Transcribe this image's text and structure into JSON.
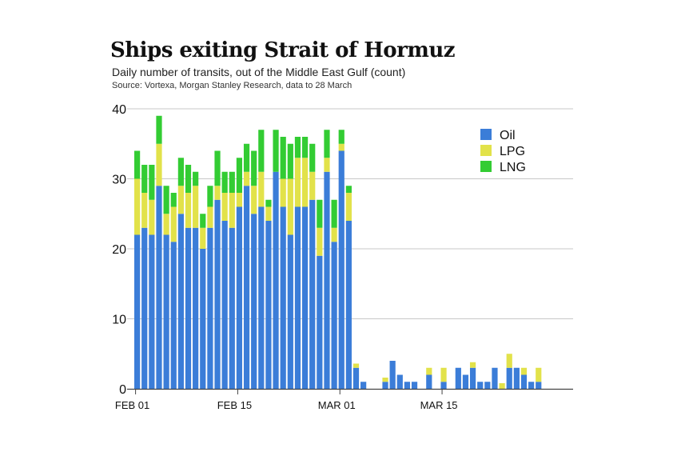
{
  "title": "Ships exiting Strait of Hormuz",
  "subtitle": "Daily number of transits, out of the Middle East Gulf (count)",
  "source": "Source: Vortexa, Morgan Stanley Research, data to 28 March",
  "colors": {
    "oil": "#3b7dd8",
    "lpg": "#e2e24a",
    "lng": "#33cc33",
    "grid": "#c8c8c8",
    "axis": "#444444"
  },
  "chart_data": {
    "type": "bar",
    "stacked": true,
    "title": "Ships exiting Strait of Hormuz",
    "subtitle": "Daily number of transits, out of the Middle East Gulf (count)",
    "xlabel": "",
    "ylabel": "",
    "ylim": [
      0,
      40
    ],
    "yticks": [
      0,
      10,
      20,
      30,
      40
    ],
    "grid": true,
    "legend_position": "top-right",
    "x_start": "2025-02-01",
    "x_end": "2025-03-28",
    "xticks": [
      {
        "day": 0,
        "label": "FEB 01"
      },
      {
        "day": 14,
        "label": "FEB 15"
      },
      {
        "day": 28,
        "label": "MAR 01"
      },
      {
        "day": 42,
        "label": "MAR 15"
      }
    ],
    "series": [
      {
        "name": "Oil",
        "color": "#3b7dd8",
        "values": [
          22,
          23,
          22,
          29,
          22,
          21,
          25,
          23,
          23,
          20,
          23,
          27,
          24,
          23,
          26,
          29,
          25,
          26,
          24,
          31,
          26,
          22,
          26,
          26,
          27,
          19,
          31,
          21,
          34,
          24,
          3,
          1,
          0,
          0,
          1,
          4,
          2,
          1,
          1,
          0,
          2,
          0,
          1,
          0,
          3,
          2,
          3,
          1,
          1,
          3,
          0,
          3,
          3,
          2,
          1,
          1
        ]
      },
      {
        "name": "LPG",
        "color": "#e2e24a",
        "values": [
          8,
          5,
          5,
          6,
          3,
          5,
          4,
          5,
          6,
          3,
          3,
          2,
          4,
          5,
          2,
          2,
          4,
          5,
          2,
          0,
          4,
          8,
          7,
          7,
          4,
          4,
          2,
          2,
          1,
          4,
          0.6,
          0,
          0,
          0,
          0.6,
          0,
          0,
          0,
          0,
          0,
          1,
          0,
          2,
          0,
          0,
          0,
          0.8,
          0,
          0,
          0,
          0.8,
          2,
          0,
          1,
          0,
          2
        ]
      },
      {
        "name": "LNG",
        "color": "#33cc33",
        "values": [
          4,
          4,
          5,
          4,
          4,
          2,
          4,
          4,
          2,
          2,
          3,
          5,
          3,
          3,
          5,
          4,
          5,
          6,
          1,
          6,
          6,
          5,
          3,
          3,
          4,
          4,
          4,
          4,
          2,
          1,
          0,
          0,
          0,
          0,
          0,
          0,
          0,
          0,
          0,
          0,
          0,
          0,
          0,
          0,
          0,
          0,
          0,
          0,
          0,
          0,
          0,
          0,
          0,
          0,
          0,
          0
        ]
      }
    ]
  }
}
